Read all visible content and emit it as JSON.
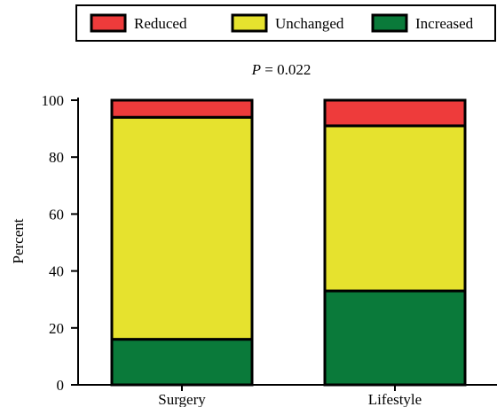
{
  "chart_data": {
    "type": "bar",
    "stacked": true,
    "annotation": {
      "prefix": "P",
      "text": " = 0.022"
    },
    "xlabel": "",
    "ylabel": "Percent",
    "ylim": [
      0,
      100
    ],
    "yticks": [
      "0",
      "20",
      "40",
      "60",
      "80",
      "100"
    ],
    "categories": [
      "Surgery",
      "Lifestyle"
    ],
    "series": [
      {
        "name": "Increased",
        "color": "#0a7a3a",
        "values": [
          16,
          33
        ]
      },
      {
        "name": "Unchanged",
        "color": "#e6e22e",
        "values": [
          78,
          58
        ]
      },
      {
        "name": "Reduced",
        "color": "#ee3b3b",
        "values": [
          6,
          9
        ]
      }
    ],
    "legend": {
      "placement": "top",
      "order": [
        "Reduced",
        "Unchanged",
        "Increased"
      ]
    },
    "grid": false
  }
}
